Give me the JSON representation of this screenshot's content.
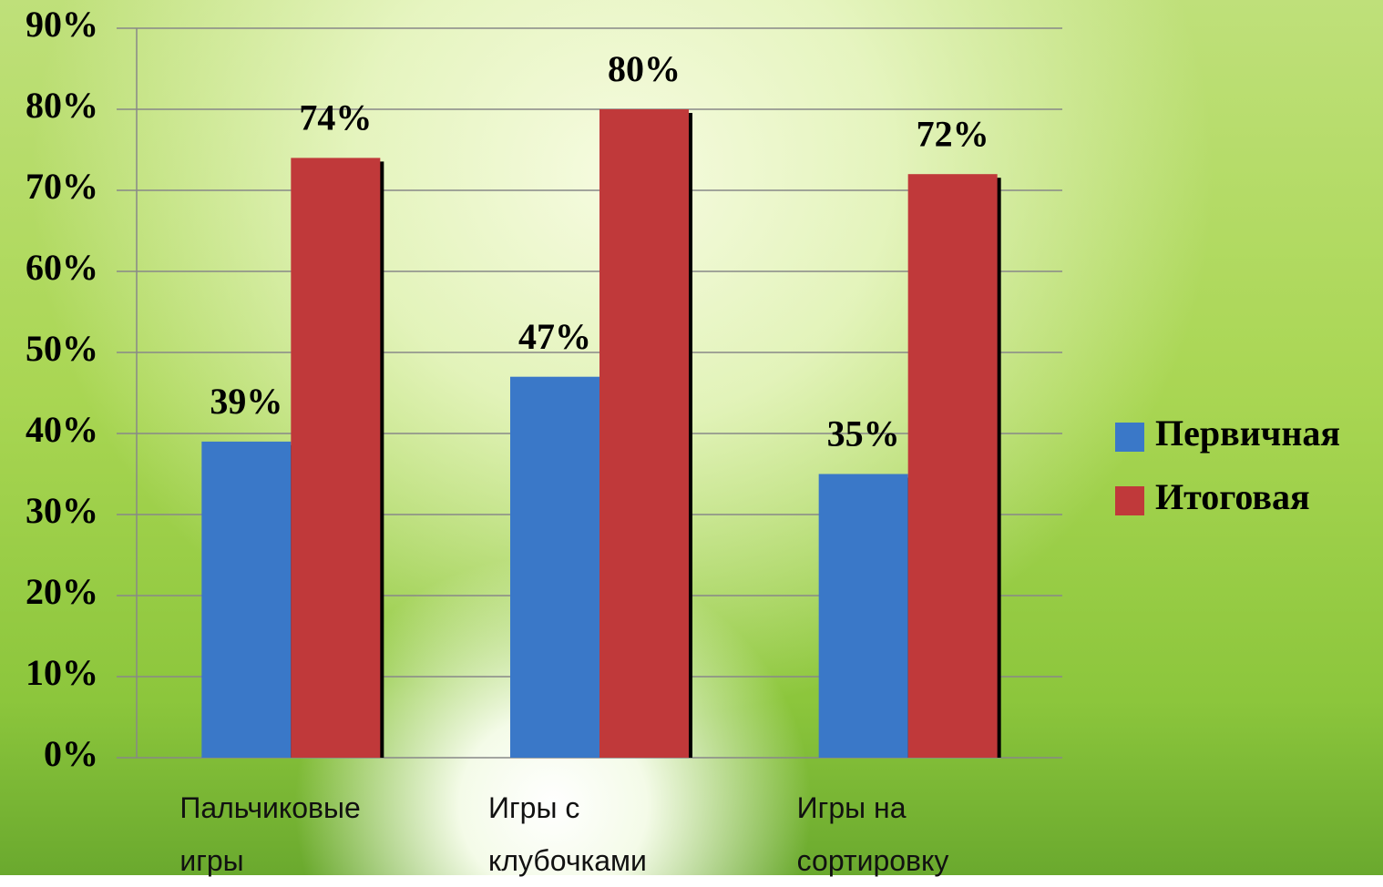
{
  "chart_data": {
    "type": "bar",
    "categories": [
      "Пальчиковые игры",
      "Игры с клубочками",
      "Игры на сортировку"
    ],
    "series": [
      {
        "name": "Первичная",
        "color": "#3a78c8",
        "values": [
          39,
          47,
          35
        ],
        "value_labels": [
          "39%",
          "47%",
          "35%"
        ]
      },
      {
        "name": "Итоговая",
        "color": "#c0393a",
        "values": [
          74,
          80,
          72
        ],
        "value_labels": [
          "74%",
          "80%",
          "72%"
        ]
      }
    ],
    "ylim": [
      0,
      90
    ],
    "yticks": [
      {
        "value": 0,
        "label": "0%"
      },
      {
        "value": 10,
        "label": "10%"
      },
      {
        "value": 20,
        "label": "20%"
      },
      {
        "value": 30,
        "label": "30%"
      },
      {
        "value": 40,
        "label": "40%"
      },
      {
        "value": 50,
        "label": "50%"
      },
      {
        "value": 60,
        "label": "60%"
      },
      {
        "value": 70,
        "label": "70%"
      },
      {
        "value": 80,
        "label": "80%"
      },
      {
        "value": 90,
        "label": "90%"
      }
    ],
    "grid": true,
    "legend": "right"
  }
}
